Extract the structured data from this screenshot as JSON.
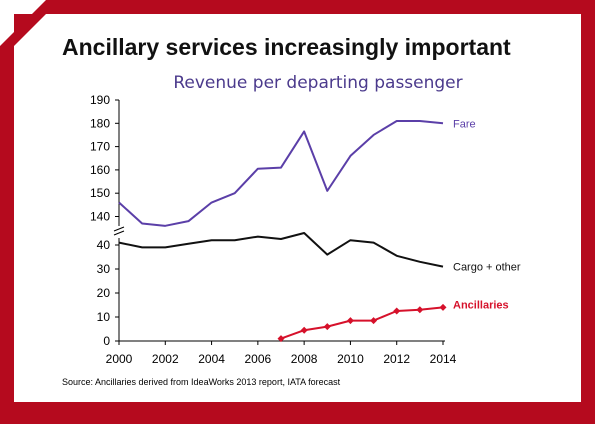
{
  "slide": {
    "title": "Ancillary services increasingly important",
    "frame_color": "#b50a1e"
  },
  "chart_data": {
    "type": "line",
    "title": "Revenue per departing passenger",
    "source": "Source: Ancillaries derived from IdeaWorks 2013 report, IATA forecast",
    "xlim": [
      2000,
      2014
    ],
    "x_ticks": [
      2000,
      2002,
      2004,
      2006,
      2008,
      2010,
      2012,
      2014
    ],
    "axis_break": true,
    "upper_ylim": [
      135,
      190
    ],
    "upper_y_ticks": [
      140,
      150,
      160,
      170,
      180,
      190
    ],
    "lower_ylim": [
      0,
      45
    ],
    "lower_y_ticks": [
      0,
      10,
      20,
      30,
      40
    ],
    "grid": false,
    "series": [
      {
        "name": "Fare",
        "color": "#5b3fa8",
        "panel": "upper",
        "marker": "none",
        "x": [
          2000,
          2001,
          2002,
          2003,
          2004,
          2005,
          2006,
          2007,
          2008,
          2009,
          2010,
          2011,
          2012,
          2013,
          2014
        ],
        "values": [
          146,
          137,
          136,
          138,
          146,
          150,
          160.5,
          161,
          176.5,
          151,
          166,
          175,
          181,
          181,
          180
        ]
      },
      {
        "name": "Cargo + other",
        "color": "#111111",
        "panel": "lower",
        "marker": "none",
        "x": [
          2000,
          2001,
          2002,
          2003,
          2004,
          2005,
          2006,
          2007,
          2008,
          2009,
          2010,
          2011,
          2012,
          2013,
          2014
        ],
        "values": [
          41,
          39,
          39,
          40.5,
          42,
          42,
          43.5,
          42.5,
          45,
          36,
          42,
          41,
          35.5,
          33,
          31
        ]
      },
      {
        "name": "Ancillaries",
        "color": "#d6112b",
        "panel": "lower",
        "marker": "diamond",
        "x": [
          2007,
          2008,
          2009,
          2010,
          2011,
          2012,
          2013,
          2014
        ],
        "values": [
          1,
          4.5,
          6,
          8.5,
          8.5,
          12.5,
          13,
          14
        ]
      }
    ]
  }
}
